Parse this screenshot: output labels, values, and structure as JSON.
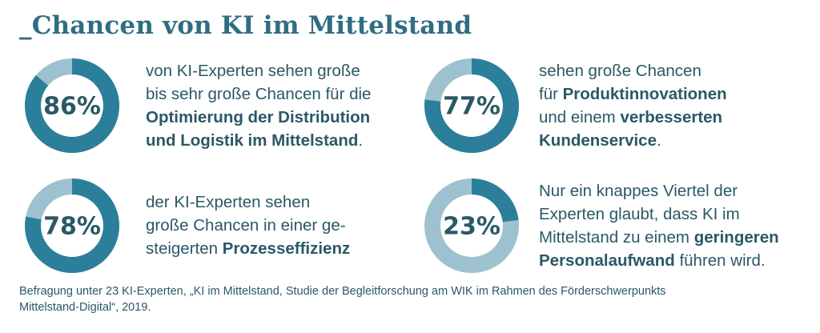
{
  "title": "_Chancen von KI im Mittelstand",
  "colors": {
    "accent": "#2b7f9b",
    "track": "#9ec1cf",
    "text": "#2a5866"
  },
  "chart_data": [
    {
      "type": "pie",
      "value": 86,
      "label": "86%",
      "lines": [
        [
          {
            "t": "von KI-Experten sehen große",
            "b": false
          }
        ],
        [
          {
            "t": "bis sehr große Chancen für die",
            "b": false
          }
        ],
        [
          {
            "t": "Optimierung der Distribution",
            "b": true
          }
        ],
        [
          {
            "t": "und Logistik im Mittelstand",
            "b": true
          },
          {
            "t": ".",
            "b": false
          }
        ]
      ]
    },
    {
      "type": "pie",
      "value": 77,
      "label": "77%",
      "lines": [
        [
          {
            "t": "sehen große Chancen",
            "b": false
          }
        ],
        [
          {
            "t": "für ",
            "b": false
          },
          {
            "t": "Produktinnovationen",
            "b": true
          }
        ],
        [
          {
            "t": "und einem ",
            "b": false
          },
          {
            "t": "verbesserten",
            "b": true
          }
        ],
        [
          {
            "t": "Kundenservice",
            "b": true
          },
          {
            "t": ".",
            "b": false
          }
        ]
      ]
    },
    {
      "type": "pie",
      "value": 78,
      "label": "78%",
      "lines": [
        [
          {
            "t": "der KI-Experten sehen",
            "b": false
          }
        ],
        [
          {
            "t": "große Chancen in einer ge-",
            "b": false
          }
        ],
        [
          {
            "t": "steigerten ",
            "b": false
          },
          {
            "t": "Prozesseffizienz",
            "b": true
          }
        ]
      ]
    },
    {
      "type": "pie",
      "value": 23,
      "label": "23%",
      "lines": [
        [
          {
            "t": "Nur ein knappes Viertel der",
            "b": false
          }
        ],
        [
          {
            "t": "Experten glaubt, dass KI im",
            "b": false
          }
        ],
        [
          {
            "t": "Mittelstand zu einem ",
            "b": false
          },
          {
            "t": "geringeren",
            "b": true
          }
        ],
        [
          {
            "t": "Personalaufwand",
            "b": true
          },
          {
            "t": " führen wird.",
            "b": false
          }
        ]
      ]
    }
  ],
  "source": {
    "line1": "Befragung unter 23 KI-Experten, „KI im Mittelstand, Studie der Begleitforschung am WIK im Rahmen des Förderschwerpunkts",
    "line2": "Mittelstand-Digital“, 2019."
  }
}
